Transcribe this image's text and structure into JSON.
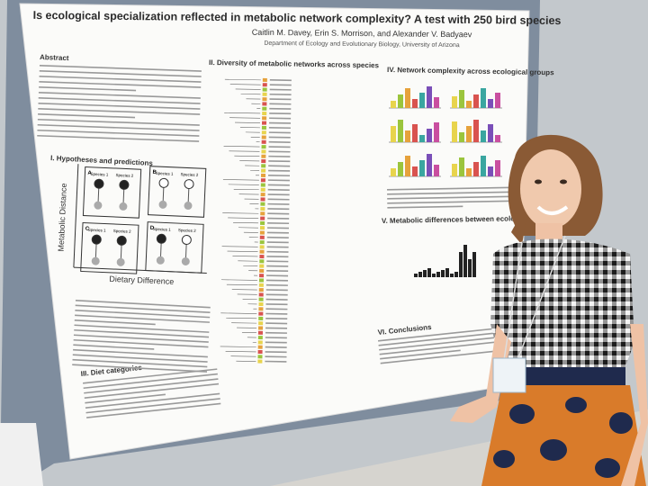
{
  "poster": {
    "title": "Is ecological specialization reflected in metabolic network complexity? A test with 250 bird species",
    "authors": "Caitlin M. Davey, Erin S. Morrison, and Alexander V. Badyaev",
    "affiliation": "Department of Ecology and Evolutionary Biology, University of Arizona",
    "sections": {
      "abstract": "Abstract",
      "hypotheses": "I. Hypotheses and predictions",
      "diversity": "II. Diversity of metabolic networks across species",
      "diet": "III. Diet categories",
      "complexity": "IV. Network complexity across ecological groups",
      "differences": "V. Metabolic differences between ecological groups",
      "conclusions": "VI. Conclusions"
    },
    "figure1": {
      "y_axis": "Metabolic Distance",
      "x_axis": "Dietary Difference",
      "species1": "Species 1",
      "species2": "Species 2",
      "panels": [
        "A",
        "B",
        "C",
        "D"
      ]
    }
  }
}
